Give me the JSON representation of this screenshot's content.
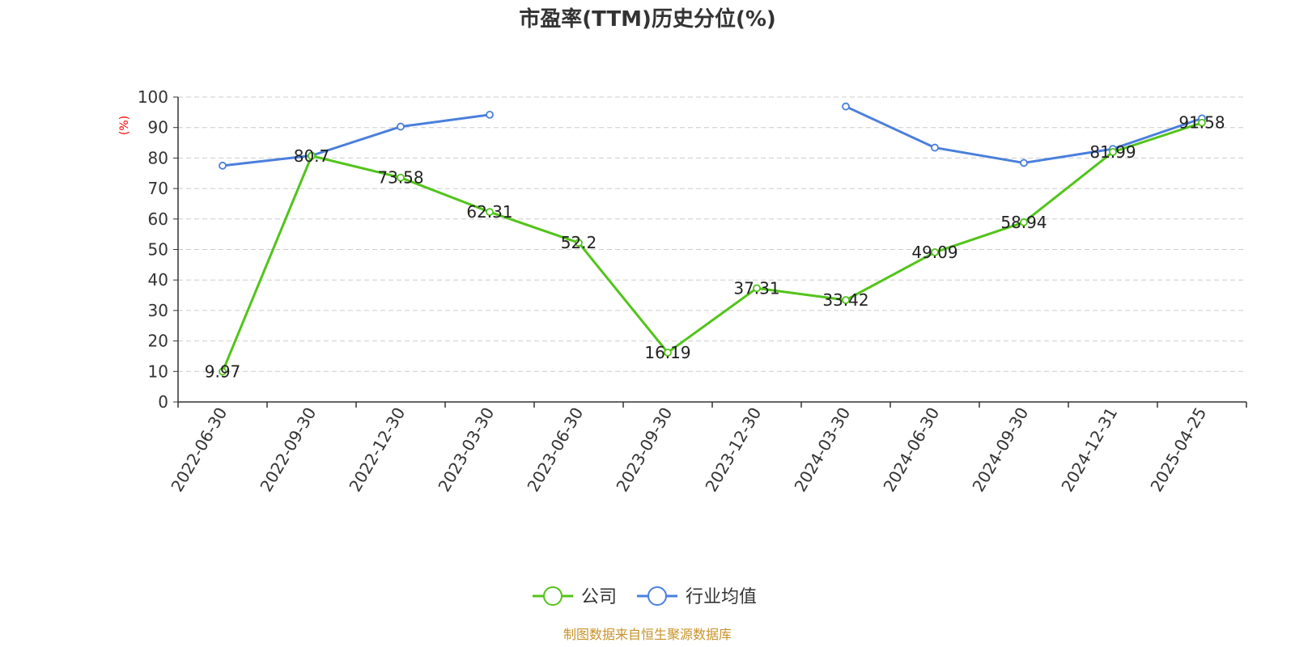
{
  "chart_data": {
    "type": "line",
    "title": "市盈率(TTM)历史分位(%)",
    "ylabel": "(%)",
    "ylim": [
      0,
      100
    ],
    "yticks": [
      0,
      10,
      20,
      30,
      40,
      50,
      60,
      70,
      80,
      90,
      100
    ],
    "grid": true,
    "legend_position": "bottom",
    "categories": [
      "2022-06-30",
      "2022-09-30",
      "2022-12-30",
      "2023-03-30",
      "2023-06-30",
      "2023-09-30",
      "2023-12-30",
      "2024-03-30",
      "2024-06-30",
      "2024-09-30",
      "2024-12-31",
      "2025-04-25"
    ],
    "series": [
      {
        "name": "公司",
        "color": "#52c41a",
        "values": [
          9.97,
          80.7,
          73.58,
          62.31,
          52.2,
          16.19,
          37.31,
          33.42,
          49.09,
          58.94,
          81.99,
          91.58
        ],
        "labels": [
          "9.97",
          "80.7",
          "73.58",
          "62.31",
          "52.2",
          "16.19",
          "37.31",
          "33.42",
          "49.09",
          "58.94",
          "81.99",
          "91.58"
        ]
      },
      {
        "name": "行业均值",
        "color": "#4a7fdc",
        "values": [
          77.5,
          80.8,
          90.3,
          94.2,
          null,
          null,
          null,
          96.9,
          83.4,
          78.4,
          83.0,
          93.0
        ]
      }
    ],
    "source": "制图数据来自恒生聚源数据库"
  },
  "colors": {
    "axis": "#333333",
    "grid": "#cccccc",
    "unit": "#ff0000",
    "source": "#c8922a"
  }
}
